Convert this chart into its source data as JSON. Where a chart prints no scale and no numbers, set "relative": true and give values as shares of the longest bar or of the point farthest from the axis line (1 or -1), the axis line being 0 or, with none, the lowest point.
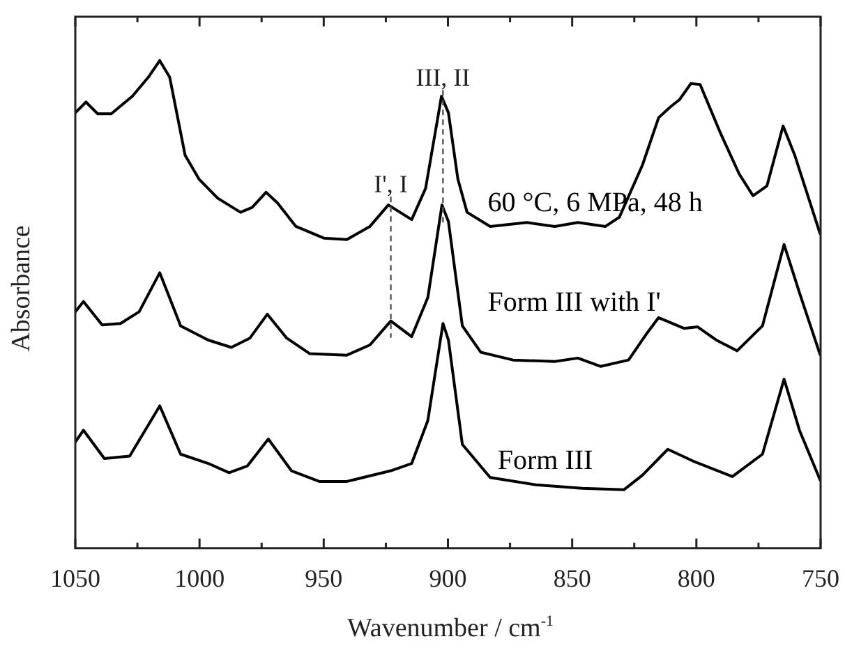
{
  "chart_data": {
    "type": "line",
    "relative": true,
    "xlabel": "Wavenumber / cm$^{-1}$",
    "ylabel": "Absorbance",
    "xlim": [
      1050,
      750
    ],
    "xticks": [
      1050,
      {
        "value": 1025,
        "label": null
      },
      1000,
      {
        "value": 975,
        "label": null
      },
      950,
      {
        "value": 925,
        "label": null
      },
      900,
      {
        "value": 875,
        "label": null
      },
      850,
      {
        "value": 825,
        "label": null
      },
      800,
      {
        "value": 775,
        "label": null
      },
      750
    ],
    "legend": false,
    "grid": false,
    "marker": "none",
    "line_style": "solid",
    "ref_lines": [
      {
        "axis": "x",
        "value": 923,
        "label": "I', I",
        "line_style": "dashed",
        "color": "#555555"
      },
      {
        "axis": "x",
        "value": 902,
        "label": "III, II",
        "line_style": "dashed",
        "color": "#555555"
      }
    ],
    "series": [
      {
        "name": "60 °C, 6 MPa, 48 h",
        "color": "#000000",
        "x": [
          1050,
          1045.7,
          1041,
          1035.5,
          1027,
          1020.6,
          1016,
          1012,
          1005.8,
          1000.2,
          992.7,
          983.5,
          978.8,
          973.2,
          968.6,
          961.2,
          950,
          940.7,
          931.4,
          924,
          914.6,
          909,
          902.6,
          899.8,
          896,
          892.3,
          883,
          868.2,
          857,
          847.7,
          836.6,
          831,
          821.7,
          815.2,
          810.5,
          806.8,
          802.2,
          798.5,
          790.1,
          782.7,
          777.2,
          771.6,
          765.1,
          760.4,
          750.2
        ],
        "values": [
          0.893,
          0.915,
          0.891,
          0.891,
          0.927,
          0.966,
          1,
          0.966,
          0.806,
          0.757,
          0.718,
          0.689,
          0.699,
          0.73,
          0.708,
          0.66,
          0.636,
          0.633,
          0.66,
          0.704,
          0.674,
          0.738,
          0.927,
          0.893,
          0.757,
          0.689,
          0.66,
          0.668,
          0.66,
          0.668,
          0.66,
          0.679,
          0.786,
          0.883,
          0.905,
          0.92,
          0.953,
          0.951,
          0.849,
          0.767,
          0.723,
          0.743,
          0.866,
          0.806,
          0.645
        ]
      },
      {
        "name": "Form III with I'",
        "color": "#000000",
        "x": [
          1050,
          1046.7,
          1039.2,
          1031.8,
          1024.3,
          1016,
          1007.6,
          996.5,
          987.2,
          979.7,
          972.7,
          964.9,
          955.6,
          940.7,
          931.4,
          923,
          914.6,
          908.1,
          902.4,
          899.8,
          894.2,
          886.8,
          873.8,
          857,
          847.7,
          838.5,
          827.3,
          819.9,
          815.2,
          805,
          799.5,
          792,
          783.6,
          773.4,
          764.7,
          758.5,
          750.2
        ],
        "values": [
          0.485,
          0.506,
          0.458,
          0.461,
          0.485,
          0.565,
          0.456,
          0.427,
          0.412,
          0.431,
          0.48,
          0.431,
          0.399,
          0.396,
          0.417,
          0.466,
          0.434,
          0.514,
          0.704,
          0.67,
          0.456,
          0.402,
          0.386,
          0.383,
          0.39,
          0.373,
          0.386,
          0.441,
          0.473,
          0.451,
          0.454,
          0.427,
          0.405,
          0.456,
          0.623,
          0.524,
          0.397
        ]
      },
      {
        "name": "Form III",
        "color": "#000000",
        "x": [
          1050,
          1046.7,
          1038.3,
          1028.1,
          1016,
          1007.6,
          996.5,
          988.1,
          980.7,
          972.3,
          963,
          951.8,
          940.7,
          923,
          914.6,
          908.1,
          902,
          899.8,
          894.2,
          883,
          864.5,
          845.9,
          829.2,
          821.7,
          811.5,
          801.4,
          785.5,
          773.4,
          764.7,
          758.5,
          750.2
        ],
        "values": [
          0.218,
          0.242,
          0.184,
          0.189,
          0.292,
          0.193,
          0.174,
          0.155,
          0.169,
          0.224,
          0.159,
          0.137,
          0.137,
          0.159,
          0.174,
          0.262,
          0.461,
          0.427,
          0.213,
          0.145,
          0.13,
          0.123,
          0.12,
          0.15,
          0.203,
          0.179,
          0.147,
          0.193,
          0.347,
          0.242,
          0.14
        ]
      }
    ]
  }
}
